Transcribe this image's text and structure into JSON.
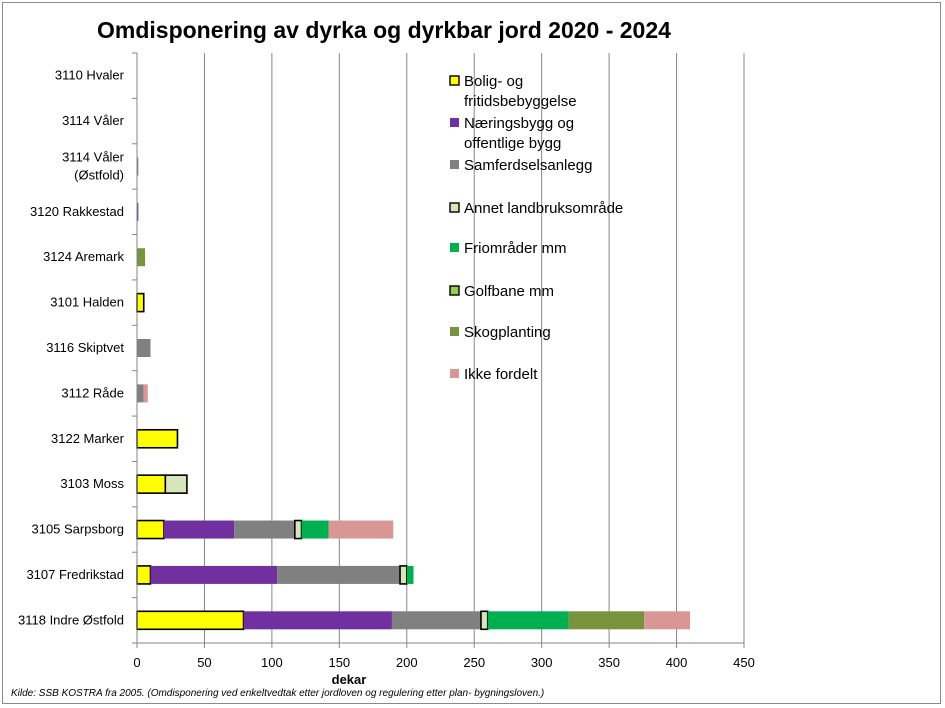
{
  "chart_data": {
    "type": "bar",
    "orientation": "horizontal",
    "stacked": true,
    "title": "Omdisponering av dyrka og dyrkbar jord 2020 - 2024",
    "xlabel": "dekar",
    "xlim": [
      0,
      450
    ],
    "xticks": [
      0,
      50,
      100,
      150,
      200,
      250,
      300,
      350,
      400,
      450
    ],
    "grid": "vertical",
    "legend_position": "right",
    "source": "Kilde: SSB KOSTRA fra 2005. (Omdisponering ved enkeltvedtak etter jordloven og regulering etter plan- bygningsloven.)",
    "categories": [
      [
        "3110 Hvaler"
      ],
      [
        "3114 Våler"
      ],
      [
        "3114 Våler",
        "(Østfold)"
      ],
      [
        "3120 Rakkestad"
      ],
      [
        "3124 Aremark"
      ],
      [
        "3101 Halden"
      ],
      [
        "3116 Skiptvet"
      ],
      [
        "3112 Råde"
      ],
      [
        "3122 Marker"
      ],
      [
        "3103 Moss"
      ],
      [
        "3105 Sarpsborg"
      ],
      [
        "3107 Fredrikstad"
      ],
      [
        "3118 Indre Østfold"
      ]
    ],
    "series": [
      {
        "name": [
          "Bolig- og",
          "fritidsbebyggelse"
        ],
        "color": "#FFFF00",
        "outline": true,
        "values": [
          0,
          0,
          0,
          0,
          0,
          5,
          0,
          0,
          30,
          21,
          20,
          10,
          79
        ]
      },
      {
        "name": [
          "Næringsbygg og",
          "offentlige bygg"
        ],
        "color": "#7030A0",
        "outline": false,
        "values": [
          0,
          0,
          0,
          1,
          0,
          0,
          0,
          0,
          0,
          0,
          52,
          94,
          110
        ]
      },
      {
        "name": [
          "Samferdselsanlegg"
        ],
        "color": "#808080",
        "outline": false,
        "values": [
          0,
          0,
          1,
          0,
          0,
          0,
          10,
          5,
          0,
          0,
          45,
          91,
          66
        ]
      },
      {
        "name": [
          "Annet landbruksområde"
        ],
        "color": "#D8E4BC",
        "outline": true,
        "values": [
          0,
          0,
          0,
          0,
          0,
          0,
          0,
          0,
          0,
          16,
          5,
          5,
          5
        ]
      },
      {
        "name": [
          "Friområder mm"
        ],
        "color": "#00B050",
        "outline": false,
        "values": [
          0,
          0,
          0,
          0,
          0,
          0,
          0,
          0,
          0,
          0,
          20,
          5,
          60
        ]
      },
      {
        "name": [
          "Golfbane mm"
        ],
        "color": "#92D050",
        "outline": true,
        "values": [
          0,
          0,
          0,
          0,
          0,
          0,
          0,
          0,
          0,
          0,
          0,
          0,
          0
        ]
      },
      {
        "name": [
          "Skogplanting"
        ],
        "color": "#77933C",
        "outline": false,
        "values": [
          0,
          0,
          0,
          0,
          6,
          0,
          0,
          0,
          0,
          0,
          0,
          0,
          56
        ]
      },
      {
        "name": [
          "Ikke fordelt"
        ],
        "color": "#D99694",
        "outline": false,
        "values": [
          0,
          0,
          0,
          0,
          0,
          0,
          0,
          3,
          0,
          0,
          48,
          0,
          34
        ]
      }
    ]
  }
}
